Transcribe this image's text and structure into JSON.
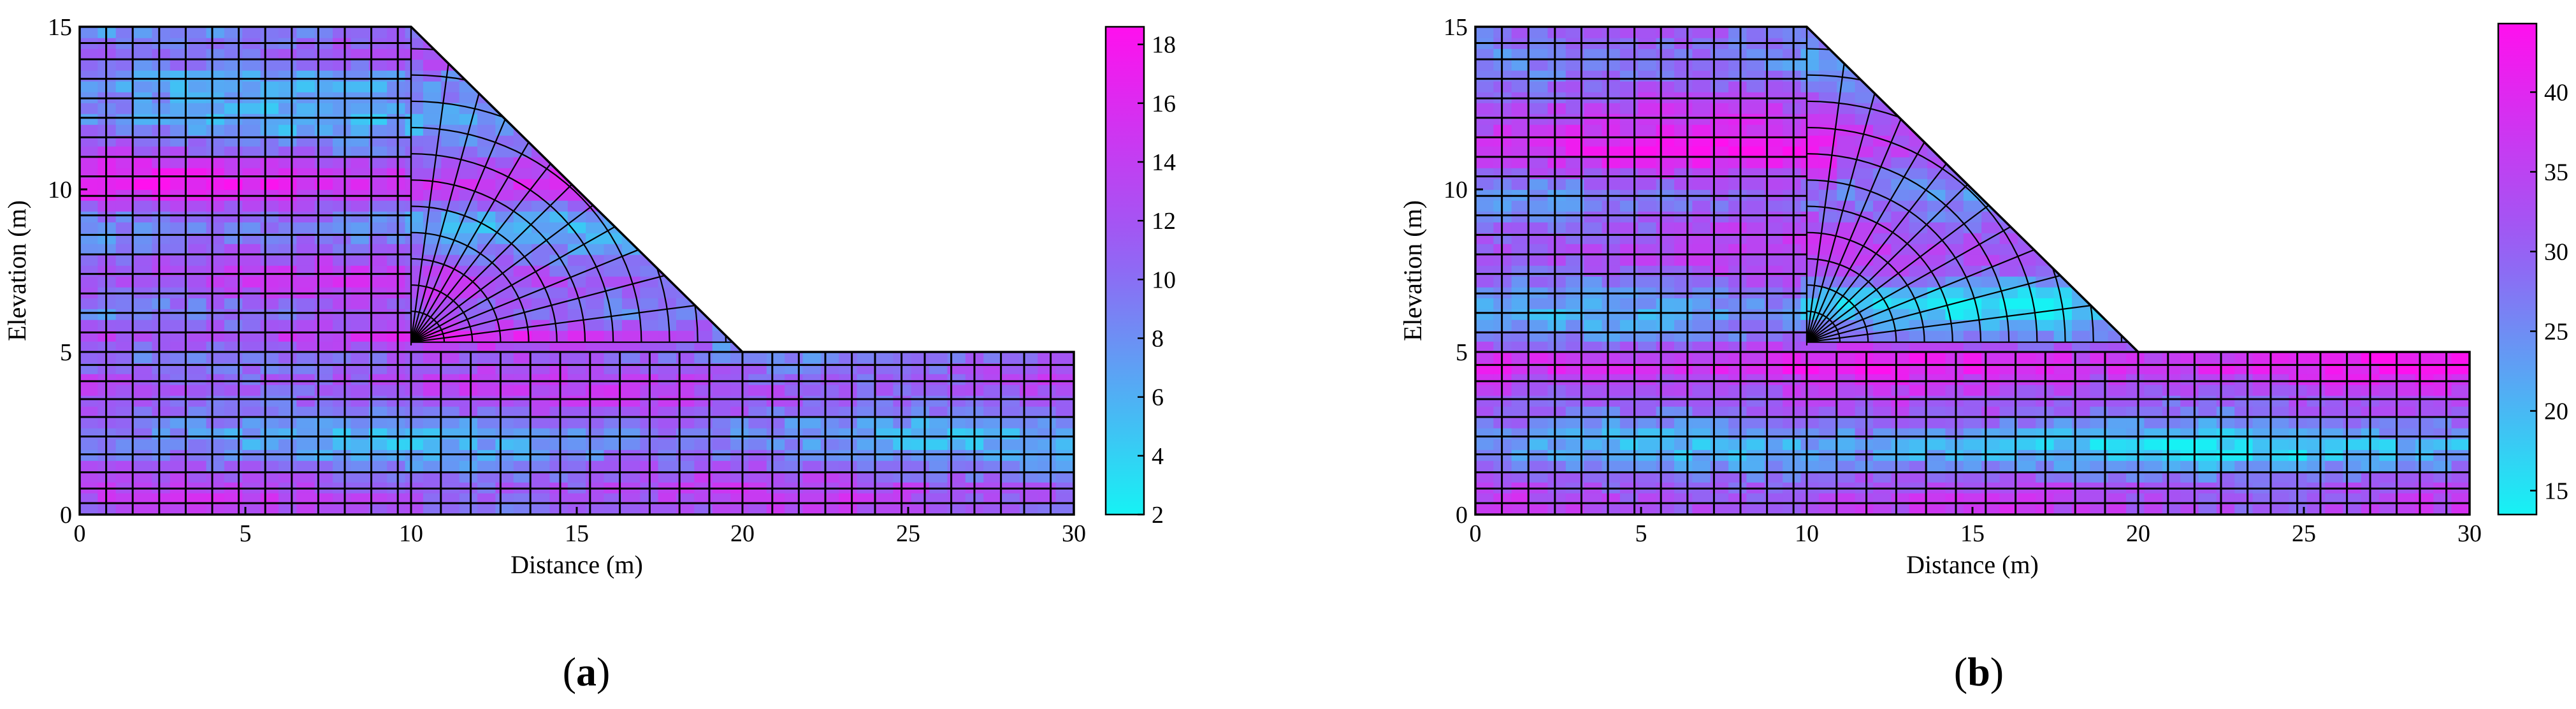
{
  "colors": {
    "low": "#16f2f4",
    "mid": "#9a5cf4",
    "high": "#ff10ee",
    "mesh": "#000000"
  },
  "chart_data": [
    {
      "type": "heatmap",
      "panel_label": "a",
      "xlabel": "Distance (m)",
      "ylabel": "Elevation (m)",
      "xlim": [
        0,
        30
      ],
      "ylim": [
        0,
        15
      ],
      "xticks": [
        0,
        5,
        10,
        15,
        20,
        25,
        30
      ],
      "yticks": [
        0,
        5,
        10,
        15
      ],
      "domain_outline": [
        [
          0,
          0
        ],
        [
          30,
          0
        ],
        [
          30,
          5
        ],
        [
          20,
          5
        ],
        [
          10,
          15
        ],
        [
          0,
          15
        ]
      ],
      "colorbar": {
        "min": 2,
        "max": 18.6,
        "ticks": [
          2,
          4,
          6,
          8,
          10,
          12,
          14,
          16,
          18
        ]
      },
      "field_value_range": [
        2,
        18.6
      ],
      "high_zone_note": "magenta bands near elevation 5.5 m and 9.5–10.5 m"
    },
    {
      "type": "heatmap",
      "panel_label": "b",
      "xlabel": "Distance (m)",
      "ylabel": "Elevation (m)",
      "xlim": [
        0,
        30
      ],
      "ylim": [
        0,
        15
      ],
      "xticks": [
        0,
        5,
        10,
        15,
        20,
        25,
        30
      ],
      "yticks": [
        0,
        5,
        10,
        15
      ],
      "domain_outline": [
        [
          0,
          0
        ],
        [
          30,
          0
        ],
        [
          30,
          5
        ],
        [
          20,
          5
        ],
        [
          10,
          15
        ],
        [
          0,
          15
        ]
      ],
      "colorbar": {
        "min": 13.5,
        "max": 44.3,
        "ticks": [
          15,
          20,
          25,
          30,
          35,
          40
        ]
      },
      "field_value_range": [
        13.5,
        44.3
      ],
      "high_zone_note": "magenta bands near elevation 11 m and 4.5–5 m"
    }
  ]
}
